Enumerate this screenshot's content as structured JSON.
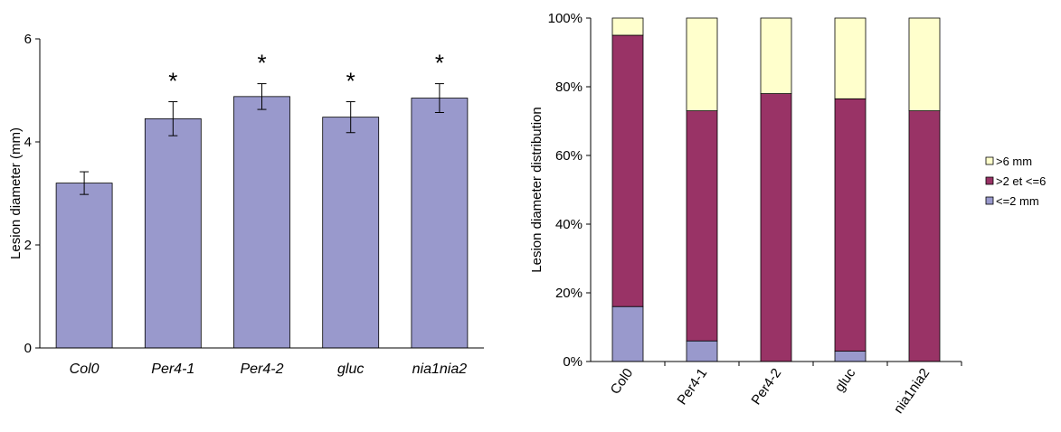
{
  "chart_data": [
    {
      "type": "bar",
      "categories": [
        "Col0",
        "Per4-1",
        "Per4-2",
        "gluc",
        "nia1nia2"
      ],
      "values": [
        3.2,
        4.45,
        4.88,
        4.48,
        4.85
      ],
      "errors": [
        0.22,
        0.33,
        0.25,
        0.3,
        0.28
      ],
      "significance": [
        "",
        "*",
        "*",
        "*",
        "*"
      ],
      "ylabel": "Lesion diameter (mm)",
      "xlabel": "",
      "ylim": [
        0,
        6
      ],
      "yticks": [
        "0",
        "2",
        "4",
        "6"
      ],
      "bar_color": "#9999cc",
      "grid": false
    },
    {
      "type": "bar",
      "stacked": true,
      "percent": true,
      "categories": [
        "Col0",
        "Per4-1",
        "Per4-2",
        "gluc",
        "nia1nia2"
      ],
      "series": [
        {
          "name": "<=2 mm",
          "values": [
            16,
            6,
            0,
            3,
            0
          ],
          "color": "#9999cc"
        },
        {
          "name": ">2 et <=6",
          "values": [
            79,
            67,
            78,
            73.5,
            73
          ],
          "color": "#993366"
        },
        {
          "name": ">6 mm",
          "values": [
            5,
            27,
            22,
            23.5,
            27
          ],
          "color": "#ffffcc"
        }
      ],
      "ylabel": "Lesion diameter distribution",
      "xlabel": "",
      "ylim": [
        0,
        100
      ],
      "yticks": [
        "0%",
        "20%",
        "40%",
        "60%",
        "80%",
        "100%"
      ],
      "legend_order": [
        ">6 mm",
        ">2 et <=6",
        "<=2 mm"
      ],
      "legend_position": "right",
      "grid": false
    }
  ]
}
